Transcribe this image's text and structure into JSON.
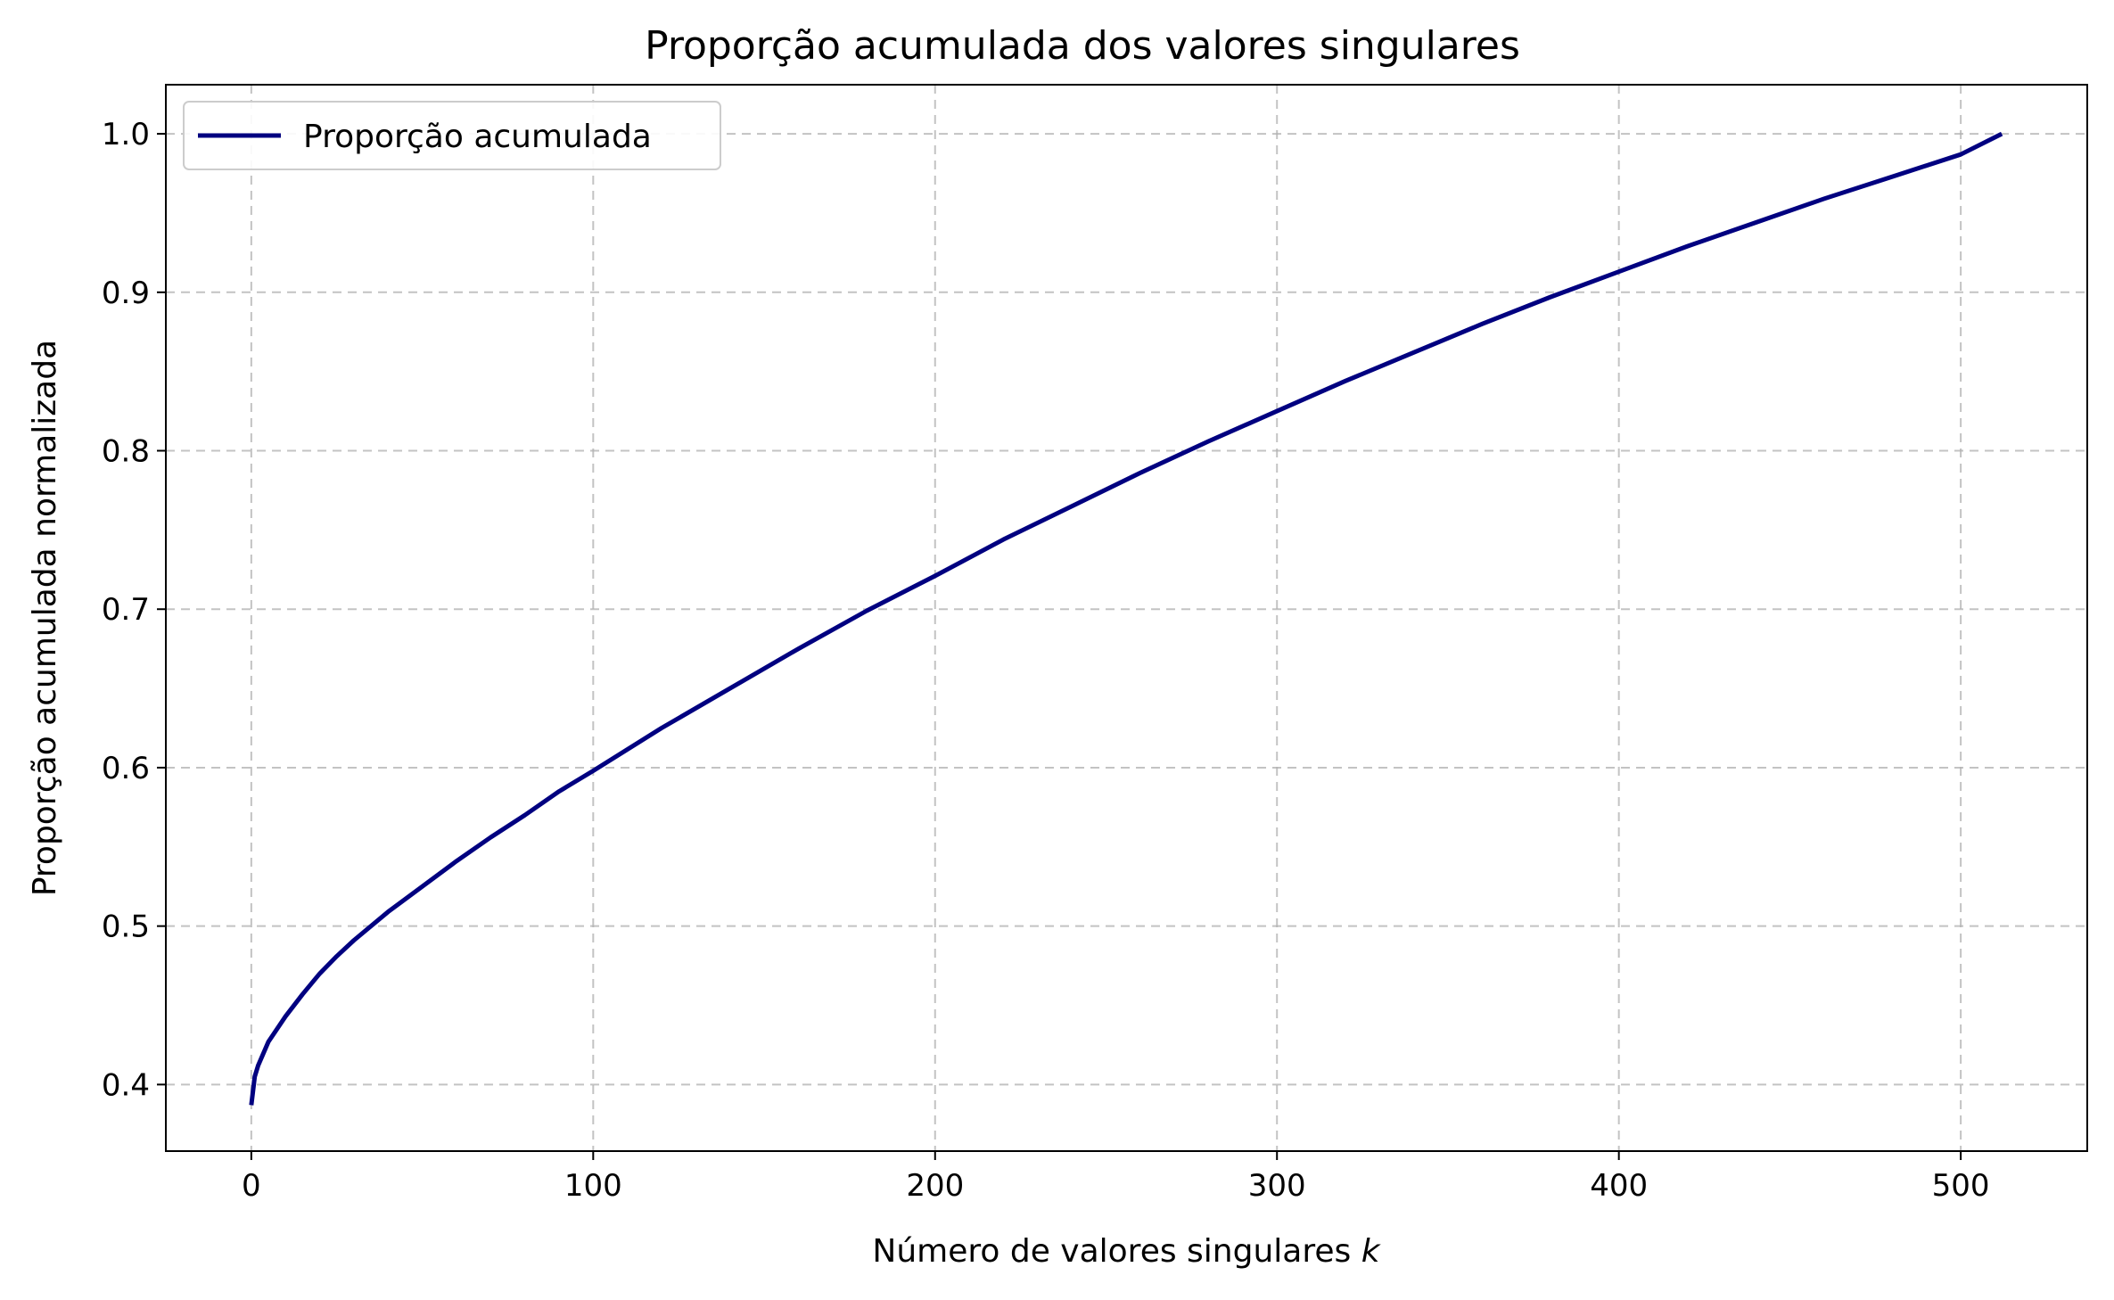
{
  "chart_data": {
    "type": "line",
    "title": "Proporção acumulada dos valores singulares",
    "xlabel": "Número de valores singulares",
    "xlabel_var": "k",
    "ylabel": "Proporção acumulada normalizada",
    "xlim": [
      -25,
      537
    ],
    "ylim": [
      0.358,
      1.031
    ],
    "xticks": [
      0,
      100,
      200,
      300,
      400,
      500
    ],
    "xtick_labels": [
      "0",
      "100",
      "200",
      "300",
      "400",
      "500"
    ],
    "yticks": [
      0.4,
      0.5,
      0.6,
      0.7,
      0.8,
      0.9,
      1.0
    ],
    "ytick_labels": [
      "0.4",
      "0.5",
      "0.6",
      "0.7",
      "0.8",
      "0.9",
      "1.0"
    ],
    "grid": true,
    "legend": {
      "placement": "upper-left",
      "entries": [
        "Proporção acumulada"
      ]
    },
    "series": [
      {
        "name": "Proporção acumulada",
        "color": "#000080",
        "x": [
          0,
          1,
          2,
          5,
          10,
          15,
          20,
          25,
          30,
          40,
          50,
          60,
          70,
          80,
          90,
          100,
          120,
          140,
          160,
          180,
          200,
          220,
          240,
          260,
          280,
          300,
          320,
          340,
          360,
          380,
          400,
          420,
          440,
          460,
          480,
          500,
          512
        ],
        "y": [
          0.387,
          0.405,
          0.412,
          0.427,
          0.443,
          0.457,
          0.47,
          0.481,
          0.491,
          0.509,
          0.525,
          0.541,
          0.556,
          0.57,
          0.585,
          0.598,
          0.625,
          0.65,
          0.675,
          0.699,
          0.721,
          0.744,
          0.765,
          0.786,
          0.806,
          0.825,
          0.844,
          0.862,
          0.88,
          0.897,
          0.913,
          0.929,
          0.944,
          0.959,
          0.973,
          0.987,
          1.0
        ]
      }
    ]
  }
}
